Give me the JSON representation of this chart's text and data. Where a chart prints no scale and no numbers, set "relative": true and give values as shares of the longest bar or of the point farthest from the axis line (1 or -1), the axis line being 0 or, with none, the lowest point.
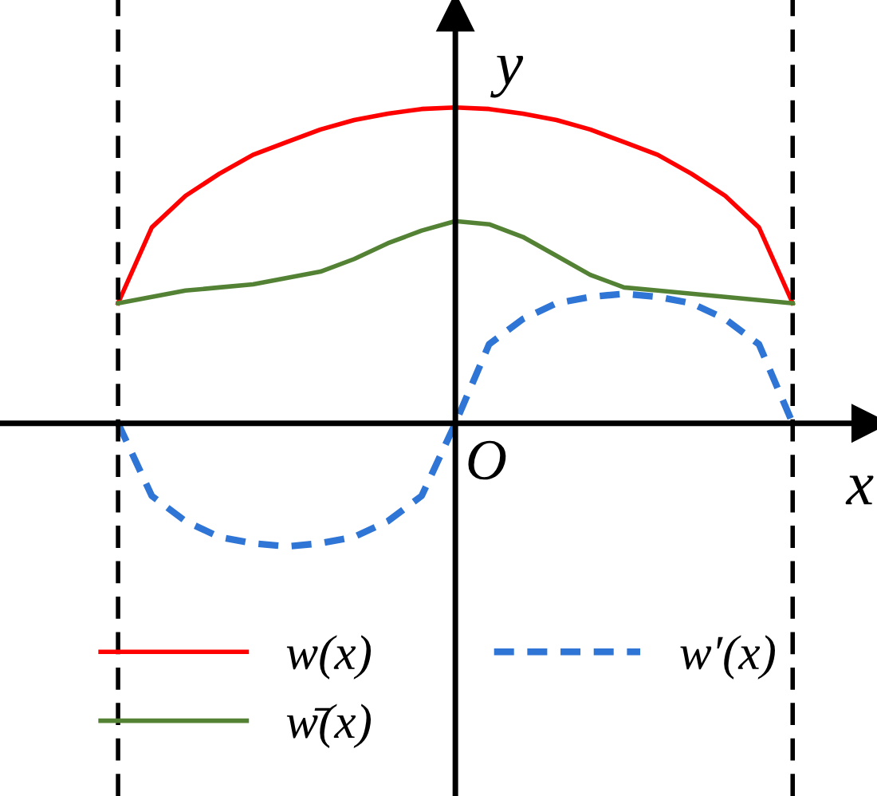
{
  "chart_data": {
    "type": "line",
    "relative": true,
    "xlabel": "x",
    "ylabel": "y",
    "annotations": [
      "O"
    ],
    "categories": [
      null,
      null,
      null,
      null,
      null,
      null,
      null,
      null,
      null,
      null,
      null,
      null,
      null,
      null,
      null,
      null,
      null,
      null,
      null,
      null,
      null
    ],
    "series": [
      {
        "name": "w(x)",
        "color": "#ff0000",
        "line_style": "solid",
        "values": [
          0.38,
          0.62,
          0.72,
          0.79,
          0.85,
          0.89,
          0.93,
          0.96,
          0.98,
          0.995,
          1,
          0.995,
          0.98,
          0.96,
          0.93,
          0.89,
          0.85,
          0.79,
          0.72,
          0.62,
          0.38
        ]
      },
      {
        "name": "w̄(x)",
        "color": "#548235",
        "line_style": "solid",
        "values": [
          0.38,
          0.4,
          0.42,
          0.43,
          0.44,
          0.46,
          0.48,
          0.52,
          0.57,
          0.61,
          0.64,
          0.63,
          0.59,
          0.53,
          0.47,
          0.43,
          0.42,
          0.41,
          0.4,
          0.39,
          0.38
        ]
      },
      {
        "name": "w′(x)",
        "color": "#2e75d6",
        "line_style": "dashed",
        "values": [
          0,
          -0.23,
          -0.31,
          -0.36,
          -0.38,
          -0.39,
          -0.38,
          -0.36,
          -0.31,
          -0.23,
          0,
          0.25,
          0.33,
          0.38,
          0.4,
          0.41,
          0.4,
          0.38,
          0.33,
          0.25,
          0
        ]
      }
    ],
    "legend": "bottom"
  }
}
